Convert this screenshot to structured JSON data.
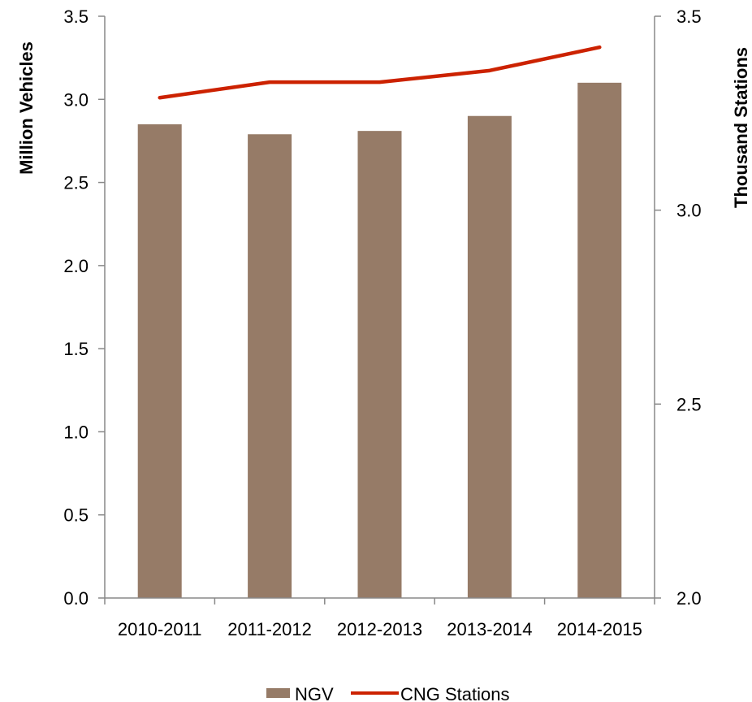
{
  "chart_data": {
    "type": "bar",
    "categories": [
      "2010-2011",
      "2011-2012",
      "2012-2013",
      "2013-2014",
      "2014-2015"
    ],
    "series": [
      {
        "name": "NGV",
        "type": "bar",
        "axis": "left",
        "color": "#967b67",
        "values": [
          2.85,
          2.79,
          2.81,
          2.9,
          3.1
        ]
      },
      {
        "name": "CNG Stations",
        "type": "line",
        "axis": "right",
        "color": "#cc2200",
        "values": [
          3.29,
          3.33,
          3.33,
          3.36,
          3.42
        ]
      }
    ],
    "ylabel": "Million Vehicles",
    "y2label": "Thousand Stations",
    "ylim": [
      0,
      3.5
    ],
    "y2lim": [
      2.0,
      3.5
    ],
    "yticks": [
      "0.0",
      "0.5",
      "1.0",
      "1.5",
      "2.0",
      "2.5",
      "3.0",
      "3.5"
    ],
    "y2ticks": [
      "2.0",
      "2.5",
      "3.0",
      "3.5"
    ],
    "grid": false,
    "legend": "bottom"
  }
}
